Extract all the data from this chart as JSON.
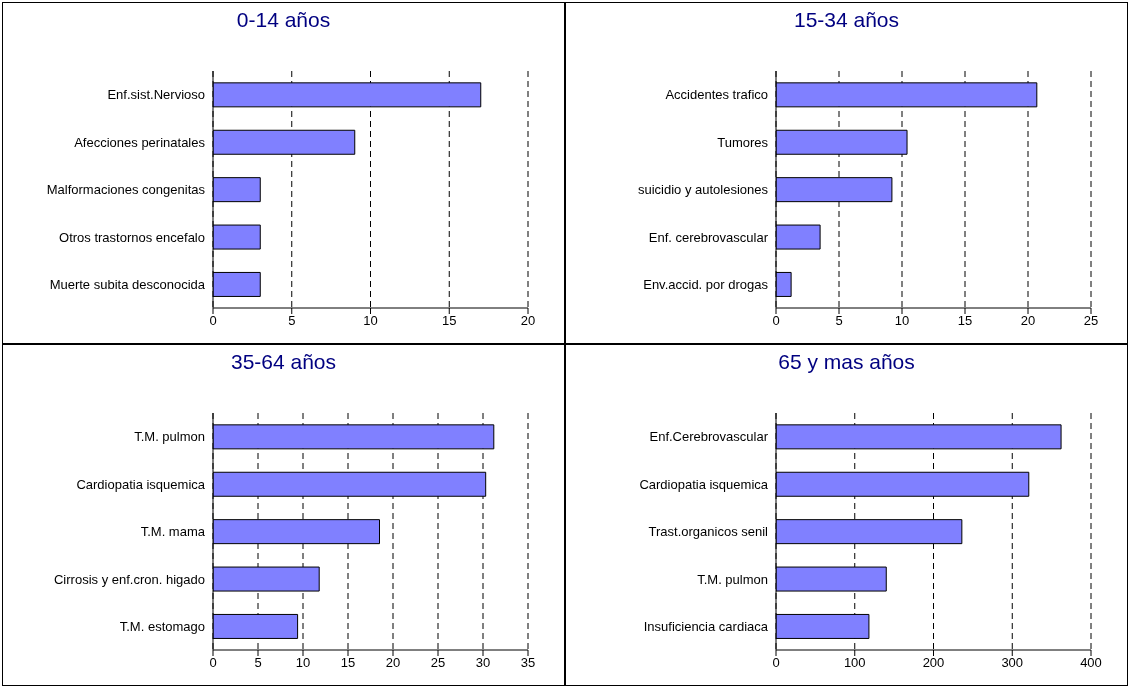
{
  "chart_data": [
    {
      "type": "bar",
      "orientation": "horizontal",
      "title": "0-14 años",
      "categories": [
        "Enf.sist.Nervioso",
        "Afecciones perinatales",
        "Malformaciones congenitas",
        "Otros trastornos encefalo",
        "Muerte subita desconocida"
      ],
      "values": [
        17,
        9,
        3,
        3,
        3
      ],
      "color": "#8080ff",
      "xlim": [
        0,
        20
      ],
      "xticks": [
        0,
        5,
        10,
        15,
        20
      ],
      "grid": "x"
    },
    {
      "type": "bar",
      "orientation": "horizontal",
      "title": "15-34 años",
      "categories": [
        "Accidentes trafico",
        "Tumores",
        "suicidio y autolesiones",
        "Enf. cerebrovascular",
        "Env.accid. por drogas"
      ],
      "values": [
        20.7,
        10.4,
        9.2,
        3.5,
        1.2
      ],
      "color": "#8080ff",
      "xlim": [
        0,
        25
      ],
      "xticks": [
        0,
        5,
        10,
        15,
        20,
        25
      ],
      "grid": "x"
    },
    {
      "type": "bar",
      "orientation": "horizontal",
      "title": "35-64 años",
      "categories": [
        "T.M. pulmon",
        "Cardiopatia isquemica",
        "T.M. mama",
        "Cirrosis y enf.cron. higado",
        "T.M. estomago"
      ],
      "values": [
        31.2,
        30.3,
        18.5,
        11.8,
        9.4
      ],
      "color": "#8080ff",
      "xlim": [
        0,
        35
      ],
      "xticks": [
        0,
        5,
        10,
        15,
        20,
        25,
        30,
        35
      ],
      "grid": "x"
    },
    {
      "type": "bar",
      "orientation": "horizontal",
      "title": "65 y mas años",
      "categories": [
        "Enf.Cerebrovascular",
        "Cardiopatia isquemica",
        "Trast.organicos senil",
        "T.M. pulmon",
        "Insuficiencia cardiaca"
      ],
      "values": [
        362,
        321,
        236,
        140,
        118
      ],
      "color": "#8080ff",
      "xlim": [
        0,
        400
      ],
      "xticks": [
        0,
        100,
        200,
        300,
        400
      ],
      "grid": "x"
    }
  ]
}
